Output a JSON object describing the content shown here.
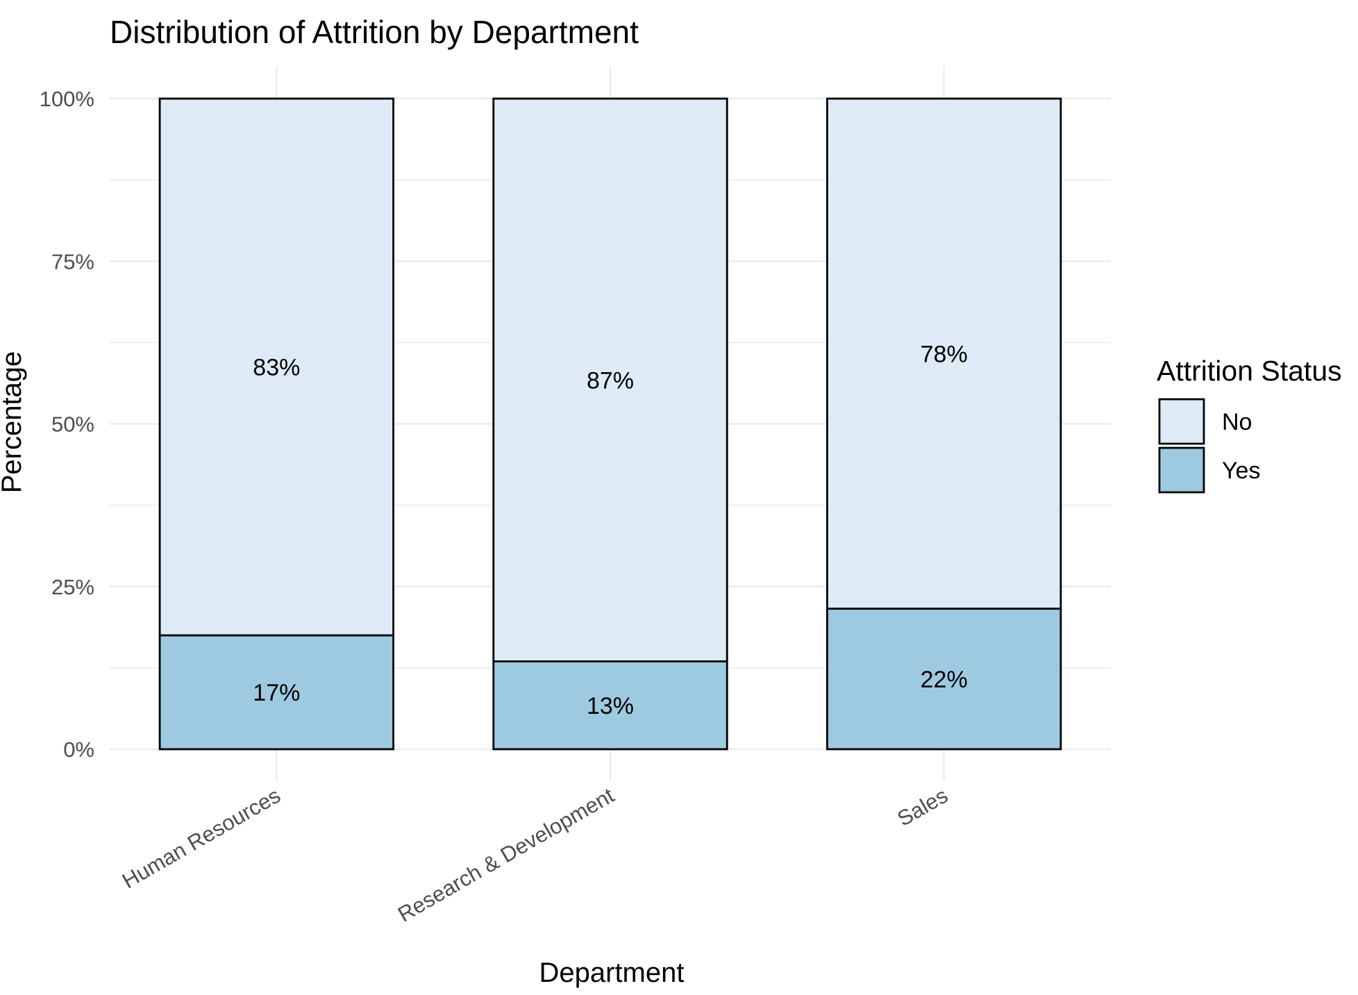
{
  "chart_data": {
    "type": "bar",
    "stacked": true,
    "percent_stacked": true,
    "title": "Distribution of Attrition by Department",
    "xlabel": "Department",
    "ylabel": "Percentage",
    "categories": [
      "Human Resources",
      "Research & Development",
      "Sales"
    ],
    "series": [
      {
        "name": "No",
        "values": [
          82.5,
          86.5,
          78.4
        ],
        "labels": [
          "83%",
          "87%",
          "78%"
        ],
        "color": "#deebf7"
      },
      {
        "name": "Yes",
        "values": [
          17.5,
          13.5,
          21.6
        ],
        "labels": [
          "17%",
          "13%",
          "22%"
        ],
        "color": "#9ecae1"
      }
    ],
    "stack_order": [
      "Yes",
      "No"
    ],
    "yticks": [
      0,
      25,
      50,
      75,
      100
    ],
    "ytick_labels": [
      "0%",
      "25%",
      "50%",
      "75%",
      "100%"
    ],
    "ylim": [
      0,
      100
    ],
    "grid": true,
    "legend": {
      "title": "Attrition Status",
      "position": "right",
      "entries": [
        "No",
        "Yes"
      ]
    },
    "bar_outline_color": "#000000",
    "grid_color": "#ebebeb"
  }
}
